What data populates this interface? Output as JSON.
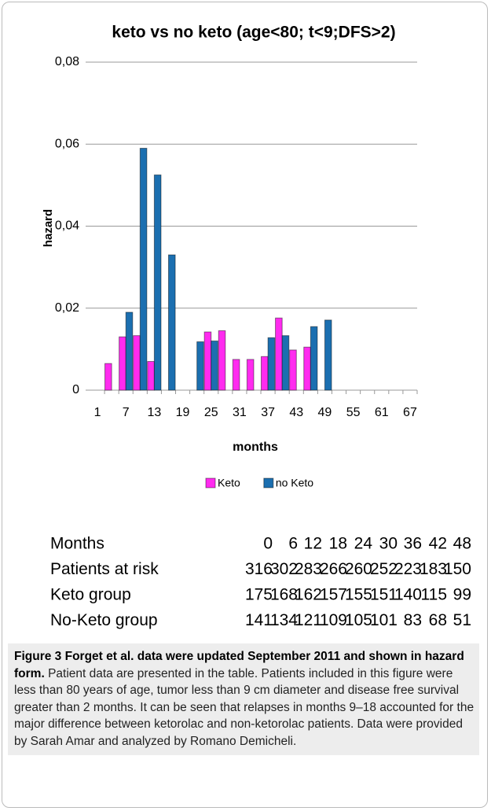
{
  "chart_data": {
    "type": "bar",
    "title": "keto vs no keto (age<80; t<9;DFS>2)",
    "x_label": "months",
    "y_label": "hazard",
    "categories": [
      "1",
      null,
      "7",
      null,
      "13",
      null,
      "19",
      null,
      "25",
      null,
      "31",
      null,
      "37",
      null,
      "43",
      null,
      "49",
      null,
      "55",
      null,
      "61",
      null,
      "67"
    ],
    "series": [
      {
        "name": "Keto",
        "color": "#ff2bef",
        "values": [
          null,
          0.0065,
          0.013,
          0.0133,
          0.007,
          null,
          null,
          null,
          0.0142,
          0.0145,
          0.0075,
          0.0075,
          0.0082,
          0.0176,
          0.0098,
          0.0105,
          null,
          null,
          null,
          null,
          null,
          null,
          null
        ]
      },
      {
        "name": "no Keto",
        "color": "#1b6fb0",
        "values": [
          null,
          null,
          0.019,
          0.059,
          0.0525,
          0.033,
          null,
          0.0118,
          0.012,
          null,
          null,
          null,
          0.0128,
          0.0133,
          null,
          0.0155,
          0.0171,
          null,
          null,
          null,
          null,
          null,
          null
        ]
      }
    ],
    "ylim": [
      0,
      0.08
    ],
    "yticks": [
      0,
      {
        "value": 0.02,
        "label": "0,02"
      },
      {
        "value": 0.04,
        "label": "0,04"
      },
      {
        "value": 0.06,
        "label": "0,06"
      },
      {
        "value": 0.08,
        "label": "0,08"
      }
    ],
    "grid": true,
    "legend": "bottom"
  },
  "table": {
    "rows": [
      [
        "Months",
        "0",
        "6",
        "12",
        "18",
        "24",
        "30",
        "36",
        "42",
        "48"
      ],
      [
        "Patients at risk",
        "316",
        "302",
        "283",
        "266",
        "260",
        "252",
        "223",
        "183",
        "150"
      ],
      [
        "Keto group",
        "175",
        "168",
        "162",
        "157",
        "155",
        "151",
        "140",
        "115",
        "99"
      ],
      [
        "No-Keto group",
        "141",
        "134",
        "121",
        "109",
        "105",
        "101",
        "83",
        "68",
        "51"
      ]
    ]
  },
  "caption": {
    "title": "Figure 3 Forget et al. data were updated September 2011 and shown in hazard form.",
    "text": "Patient data are presented in the table. Patients included in this figure were less than 80 years of age, tumor less than 9 cm diameter and disease free survival greater than 2 months. It can be seen that relapses in months 9–18 accounted for the major difference between ketorolac and non-ketorolac patients. Data were provided by Sarah Amar and analyzed by Romano Demicheli."
  }
}
